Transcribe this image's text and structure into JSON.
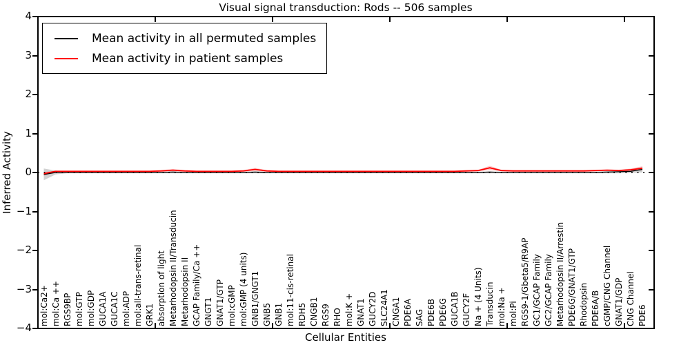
{
  "chart_data": {
    "type": "line",
    "title": "Visual signal transduction: Rods -- 506 samples",
    "xlabel": "Cellular Entities",
    "ylabel": "Inferred Activity",
    "ylim": [
      -4,
      4
    ],
    "yticks": [
      4,
      3,
      2,
      1,
      0,
      -1,
      -2,
      -3,
      -4
    ],
    "ytick_labels": [
      "4",
      "3",
      "2",
      "1",
      "0",
      "−1",
      "−2",
      "−3",
      "−4"
    ],
    "xticks_major": [
      10,
      20,
      30,
      40,
      50
    ],
    "grid": false,
    "legend_position": "upper left",
    "zero_line": {
      "style": "dotted",
      "color": "#000000",
      "y": 0
    },
    "categories": [
      "mol:Ca2+",
      "mol:Ca ++",
      "RGS9BP",
      "mol:GTP",
      "mol:GDP",
      "GUCA1A",
      "GUCA1C",
      "mol:ADP",
      "mol:all-trans-retinal",
      "GRK1",
      "absorption of light",
      "Metarhodopsin II/Transducin",
      "Metarhodopsin II",
      "GCAP Family/Ca ++",
      "GNGT1",
      "GNAT1/GTP",
      "mol:cGMP",
      "mol:GMP (4 units)",
      "GNB1/GNGT1",
      "GNB5",
      "GNB1",
      "mol:11-cis-retinal",
      "RDH5",
      "CNGB1",
      "RGS9",
      "RHO",
      "mol:K +",
      "GNAT1",
      "GUCY2D",
      "SLC24A1",
      "CNGA1",
      "PDE6A",
      "SAG",
      "PDE6B",
      "PDE6G",
      "GUCA1B",
      "GUCY2F",
      "Na + (4 Units)",
      "Transducin",
      "mol:Na +",
      "mol:Pi",
      "RGS9-1/Gbeta5/R9AP",
      "GC1/GCAP Family",
      "GC2/GCAP Family",
      "Metarhodopsin II/Arrestin",
      "PDE6G/GNAT1/GTP",
      "Rhodopsin",
      "PDE6A/B",
      "cGMP/CNG Channel",
      "GNAT1/GDP",
      "CNG Channel",
      "PDE6"
    ],
    "series": [
      {
        "name": "Mean activity in all permuted samples",
        "color": "#000000",
        "values": [
          -0.05,
          0.0,
          0.0,
          0.0,
          0.0,
          0.0,
          0.0,
          0.0,
          0.0,
          0.0,
          0.0,
          0.01,
          0.0,
          0.0,
          0.0,
          0.0,
          0.0,
          0.0,
          0.01,
          0.0,
          0.0,
          0.0,
          0.0,
          0.0,
          0.0,
          0.0,
          0.0,
          0.0,
          0.0,
          0.0,
          0.0,
          0.0,
          0.0,
          0.0,
          0.0,
          0.0,
          0.0,
          0.0,
          0.01,
          0.0,
          0.0,
          0.0,
          0.0,
          0.0,
          0.0,
          0.0,
          0.0,
          0.0,
          0.01,
          0.02,
          0.03,
          0.08
        ]
      },
      {
        "name": "Mean activity in patient samples",
        "color": "#ff0000",
        "values": [
          -0.03,
          0.03,
          0.03,
          0.03,
          0.03,
          0.03,
          0.03,
          0.03,
          0.03,
          0.03,
          0.04,
          0.06,
          0.04,
          0.03,
          0.03,
          0.03,
          0.03,
          0.04,
          0.08,
          0.04,
          0.03,
          0.03,
          0.03,
          0.03,
          0.03,
          0.03,
          0.03,
          0.03,
          0.03,
          0.03,
          0.03,
          0.03,
          0.03,
          0.03,
          0.03,
          0.03,
          0.04,
          0.05,
          0.12,
          0.05,
          0.04,
          0.04,
          0.04,
          0.04,
          0.04,
          0.04,
          0.04,
          0.05,
          0.06,
          0.05,
          0.07,
          0.11
        ]
      }
    ],
    "bands": [
      {
        "name": "permuted-samples-spread",
        "color": "#999999",
        "opacity": 0.45,
        "lower": [
          -0.2,
          -0.05,
          -0.02,
          -0.02,
          -0.02,
          -0.02,
          -0.02,
          -0.02,
          -0.02,
          -0.02,
          -0.02,
          -0.02,
          -0.02,
          -0.02,
          -0.02,
          -0.02,
          -0.02,
          -0.02,
          -0.02,
          -0.02,
          -0.02,
          -0.02,
          -0.02,
          -0.02,
          -0.02,
          -0.02,
          -0.02,
          -0.02,
          -0.02,
          -0.02,
          -0.02,
          -0.02,
          -0.02,
          -0.02,
          -0.02,
          -0.02,
          -0.02,
          -0.02,
          -0.02,
          -0.02,
          -0.02,
          -0.02,
          -0.02,
          -0.02,
          -0.02,
          -0.02,
          -0.02,
          -0.02,
          -0.02,
          -0.02,
          -0.01,
          0.0
        ],
        "upper": [
          0.1,
          0.05,
          0.02,
          0.02,
          0.02,
          0.02,
          0.02,
          0.02,
          0.02,
          0.02,
          0.02,
          0.03,
          0.02,
          0.02,
          0.02,
          0.02,
          0.02,
          0.02,
          0.03,
          0.02,
          0.02,
          0.02,
          0.02,
          0.02,
          0.02,
          0.02,
          0.02,
          0.02,
          0.02,
          0.02,
          0.02,
          0.02,
          0.02,
          0.02,
          0.02,
          0.02,
          0.02,
          0.02,
          0.03,
          0.02,
          0.02,
          0.02,
          0.02,
          0.02,
          0.02,
          0.02,
          0.02,
          0.02,
          0.04,
          0.05,
          0.07,
          0.14
        ]
      },
      {
        "name": "patient-samples-spread",
        "color": "#ff0000",
        "opacity": 0.22,
        "lower": [
          -0.08,
          0.015,
          0.015,
          0.015,
          0.015,
          0.015,
          0.015,
          0.015,
          0.015,
          0.015,
          0.02,
          0.03,
          0.02,
          0.015,
          0.015,
          0.015,
          0.015,
          0.02,
          0.04,
          0.02,
          0.015,
          0.015,
          0.015,
          0.015,
          0.015,
          0.015,
          0.015,
          0.015,
          0.015,
          0.015,
          0.015,
          0.015,
          0.015,
          0.015,
          0.015,
          0.015,
          0.02,
          0.03,
          0.06,
          0.03,
          0.02,
          0.02,
          0.02,
          0.02,
          0.02,
          0.02,
          0.02,
          0.03,
          0.04,
          0.03,
          0.04,
          0.06
        ],
        "upper": [
          0.01,
          0.045,
          0.045,
          0.045,
          0.045,
          0.045,
          0.045,
          0.045,
          0.045,
          0.045,
          0.06,
          0.09,
          0.06,
          0.045,
          0.045,
          0.045,
          0.045,
          0.06,
          0.12,
          0.06,
          0.045,
          0.045,
          0.045,
          0.045,
          0.045,
          0.045,
          0.045,
          0.045,
          0.045,
          0.045,
          0.045,
          0.045,
          0.045,
          0.045,
          0.045,
          0.045,
          0.06,
          0.07,
          0.17,
          0.07,
          0.06,
          0.06,
          0.06,
          0.06,
          0.06,
          0.06,
          0.06,
          0.07,
          0.08,
          0.07,
          0.1,
          0.16
        ]
      }
    ]
  }
}
